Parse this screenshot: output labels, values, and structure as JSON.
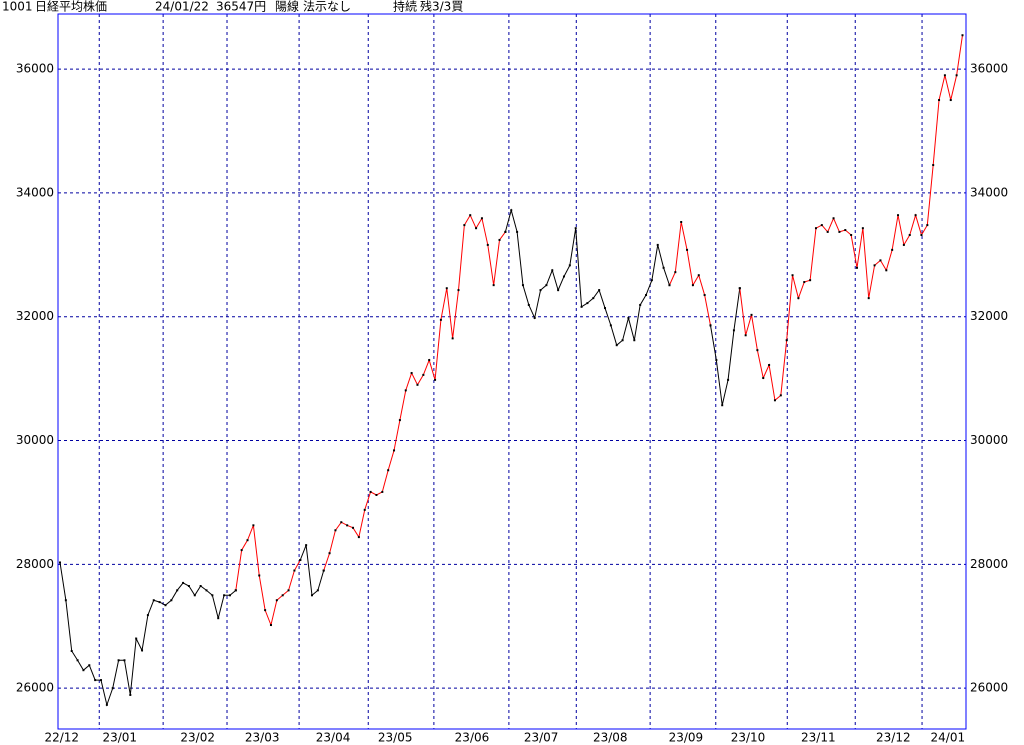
{
  "chart_data": {
    "type": "line",
    "header": [
      "1001",
      "日経平均株価",
      "24/01/22",
      "36547円",
      "陽線",
      "法示なし",
      "持続",
      "残3/3買"
    ],
    "x": [
      0,
      1,
      2,
      3,
      4,
      5,
      6,
      7,
      8,
      9,
      10,
      11,
      12,
      13,
      14,
      15,
      16,
      17,
      18,
      19,
      20,
      21,
      22,
      23,
      24,
      25,
      26,
      27,
      28,
      29,
      30,
      31,
      32,
      33,
      34,
      35,
      36,
      37,
      38,
      39,
      40,
      41,
      42,
      43,
      44,
      45,
      46,
      47,
      48,
      49,
      50,
      51,
      52,
      53,
      54,
      55,
      56,
      57,
      58,
      59,
      60,
      61,
      62,
      63,
      64,
      65,
      66,
      67,
      68,
      69,
      70,
      71,
      72,
      73,
      74,
      75,
      76,
      77,
      78,
      79,
      80,
      81,
      82,
      83,
      84,
      85,
      86,
      87,
      88,
      89,
      90,
      91,
      92,
      93,
      94,
      95,
      96,
      97,
      98,
      99,
      100,
      101,
      102,
      103,
      104,
      105,
      106,
      107,
      108,
      109,
      110,
      111,
      112,
      113,
      114,
      115,
      116,
      117,
      118,
      119,
      120,
      121,
      122,
      123,
      124,
      125,
      126,
      127,
      128,
      129,
      130,
      131,
      132,
      133,
      134,
      135,
      136,
      137,
      138,
      139,
      140,
      141,
      142,
      143,
      144,
      145,
      146,
      147,
      148,
      149,
      150,
      151,
      152,
      153,
      154
    ],
    "series": [
      {
        "color": "#000000",
        "values": [
          28030,
          27420,
          26600,
          26450,
          26290,
          26370,
          26130,
          26130,
          25730,
          26000,
          26450,
          26450,
          25890,
          26800,
          26610,
          27180,
          27420,
          27390,
          27340,
          27420,
          27580,
          27700,
          27650,
          27500,
          27650,
          27580,
          27500,
          27130,
          27500,
          27500,
          27580,
          null,
          null,
          null,
          null,
          null,
          null,
          null,
          null,
          null,
          null,
          28070,
          28310,
          27500,
          27580,
          27900,
          null,
          null,
          null,
          null,
          null,
          null,
          null,
          null,
          null,
          null,
          null,
          null,
          null,
          null,
          null,
          null,
          null,
          null,
          null,
          null,
          null,
          null,
          null,
          null,
          null,
          null,
          null,
          null,
          null,
          null,
          33370,
          33720,
          33370,
          32510,
          32190,
          31980,
          32430,
          32510,
          32750,
          32430,
          32650,
          32830,
          33430,
          32160,
          32220,
          32300,
          32430,
          32140,
          31860,
          31540,
          31620,
          31980,
          31620,
          32190,
          32350,
          32590,
          33160,
          32790,
          32510,
          null,
          null,
          null,
          null,
          null,
          null,
          31860,
          31300,
          30570,
          30980,
          31780,
          32460,
          null,
          null,
          null,
          null,
          null,
          null,
          null,
          null,
          null,
          null,
          null,
          null,
          null,
          null,
          null,
          null,
          null,
          null,
          null,
          null,
          null,
          null,
          null,
          null,
          null,
          null,
          null,
          null,
          null,
          null,
          null,
          null,
          null,
          null,
          null,
          null,
          null,
          null
        ]
      },
      {
        "color": "#ff0000",
        "values": [
          null,
          null,
          null,
          null,
          null,
          null,
          null,
          null,
          null,
          null,
          null,
          null,
          null,
          null,
          null,
          null,
          null,
          null,
          null,
          null,
          null,
          null,
          null,
          null,
          null,
          null,
          null,
          null,
          null,
          null,
          27580,
          28230,
          28390,
          28630,
          27820,
          27260,
          27020,
          27420,
          27500,
          27580,
          27900,
          28070,
          null,
          null,
          null,
          27900,
          28180,
          28550,
          28680,
          28630,
          28590,
          28440,
          28880,
          29170,
          29120,
          29170,
          29520,
          29840,
          30330,
          30810,
          31090,
          30900,
          31060,
          31300,
          30980,
          31950,
          32460,
          31650,
          32430,
          33480,
          33640,
          33430,
          33590,
          33160,
          32510,
          33240,
          33370,
          null,
          null,
          null,
          null,
          null,
          null,
          null,
          null,
          null,
          null,
          null,
          null,
          null,
          null,
          null,
          null,
          null,
          null,
          null,
          null,
          null,
          null,
          null,
          null,
          null,
          null,
          null,
          32510,
          32720,
          33530,
          33080,
          32510,
          32670,
          32350,
          31860,
          null,
          null,
          null,
          null,
          32460,
          31700,
          32030,
          31460,
          31010,
          31220,
          30650,
          30730,
          31620,
          32670,
          32300,
          32560,
          32590,
          33430,
          33480,
          33370,
          33590,
          33370,
          33400,
          33320,
          32790,
          33430,
          32300,
          32830,
          32910,
          32750,
          33080,
          33640,
          33160,
          33320,
          33640,
          33320,
          33480,
          34450,
          35500,
          35900,
          35500,
          35900,
          36547
        ]
      }
    ],
    "xlim": [
      -0.34,
      154.6
    ],
    "xticks": [
      {
        "value": 0.3,
        "label": "22/12"
      },
      {
        "value": 10.2,
        "label": "23/01"
      },
      {
        "value": 23.5,
        "label": "23/02"
      },
      {
        "value": 34.5,
        "label": "23/03"
      },
      {
        "value": 46.6,
        "label": "23/04"
      },
      {
        "value": 57.2,
        "label": "23/05"
      },
      {
        "value": 70.3,
        "label": "23/06"
      },
      {
        "value": 82.1,
        "label": "23/07"
      },
      {
        "value": 93.9,
        "label": "23/08"
      },
      {
        "value": 106.8,
        "label": "23/09"
      },
      {
        "value": 117.4,
        "label": "23/10"
      },
      {
        "value": 129.4,
        "label": "23/11"
      },
      {
        "value": 142.2,
        "label": "23/12"
      },
      {
        "value": 151.5,
        "label": "24/01"
      }
    ],
    "xgrid": [
      6.7,
      17.6,
      28.5,
      40.8,
      52.6,
      63.8,
      76.6,
      88.1,
      100.7,
      111.9,
      124.1,
      135.7,
      147.1
    ],
    "ylim": [
      25340,
      36890
    ],
    "yticks": [
      26000,
      28000,
      30000,
      32000,
      34000,
      36000
    ],
    "grid": true
  }
}
